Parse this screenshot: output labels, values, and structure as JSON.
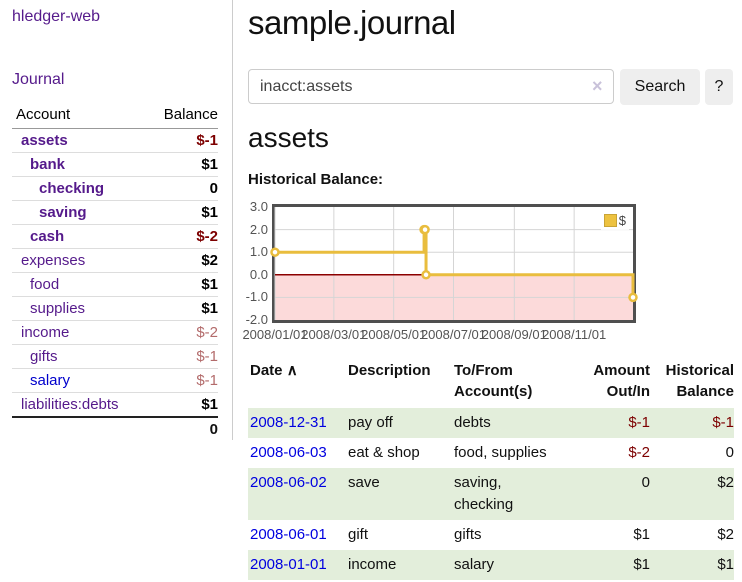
{
  "app": {
    "title": "hledger-web"
  },
  "sidebar": {
    "journal_link": "Journal",
    "accounts_table": {
      "headers": {
        "account": "Account",
        "balance": "Balance"
      },
      "rows": [
        {
          "name": "assets",
          "indent": 1,
          "bold": true,
          "balance": "$-1",
          "neg": "strong",
          "link_style": "visited"
        },
        {
          "name": "bank",
          "indent": 2,
          "bold": true,
          "balance": "$1",
          "neg": "none",
          "link_style": "visited"
        },
        {
          "name": "checking",
          "indent": 3,
          "bold": true,
          "balance": "0",
          "neg": "none",
          "link_style": "visited"
        },
        {
          "name": "saving",
          "indent": 3,
          "bold": true,
          "balance": "$1",
          "neg": "none",
          "link_style": "visited"
        },
        {
          "name": "cash",
          "indent": 2,
          "bold": true,
          "balance": "$-2",
          "neg": "strong",
          "link_style": "visited"
        },
        {
          "name": "expenses",
          "indent": 1,
          "bold": false,
          "balance": "$2",
          "neg": "none",
          "link_style": "visited"
        },
        {
          "name": "food",
          "indent": 2,
          "bold": false,
          "balance": "$1",
          "neg": "none",
          "link_style": "visited"
        },
        {
          "name": "supplies",
          "indent": 2,
          "bold": false,
          "balance": "$1",
          "neg": "none",
          "link_style": "visited"
        },
        {
          "name": "income",
          "indent": 1,
          "bold": false,
          "balance": "$-2",
          "neg": "soft",
          "link_style": "visited"
        },
        {
          "name": "gifts",
          "indent": 2,
          "bold": false,
          "balance": "$-1",
          "neg": "soft",
          "link_style": "visited"
        },
        {
          "name": "salary",
          "indent": 2,
          "bold": false,
          "balance": "$-1",
          "neg": "soft",
          "link_style": "unvisited"
        },
        {
          "name": "liabilities:debts",
          "indent": 1,
          "bold": false,
          "balance": "$1",
          "neg": "none",
          "link_style": "visited"
        }
      ],
      "total": "0"
    }
  },
  "main": {
    "page_title": "sample.journal",
    "search": {
      "value": "inacct:assets",
      "clear_icon": "×",
      "button_label": "Search",
      "help_label": "?"
    },
    "account_heading": "assets",
    "chart_label": "Historical Balance:"
  },
  "chart_data": {
    "type": "line",
    "style": "step",
    "title": "Historical Balance",
    "series": [
      {
        "name": "$",
        "points": [
          [
            "2008-01-01",
            1
          ],
          [
            "2008-06-01",
            2
          ],
          [
            "2008-06-02",
            2
          ],
          [
            "2008-06-03",
            0
          ],
          [
            "2008-12-31",
            -1
          ]
        ]
      }
    ],
    "ylim": [
      -2,
      3
    ],
    "yticks": [
      "3.0",
      "2.0",
      "1.0",
      "0.0",
      "-1.0",
      "-2.0"
    ],
    "ytick_values": [
      3,
      2,
      1,
      0,
      -1,
      -2
    ],
    "xticks": [
      "2008/01/01",
      "2008/03/01",
      "2008/05/01",
      "2008/07/01",
      "2008/09/01",
      "2008/11/01"
    ],
    "xtick_dates": [
      "2008-01-01",
      "2008-03-01",
      "2008-05-01",
      "2008-07-01",
      "2008-09-01",
      "2008-11-01"
    ],
    "xrange": [
      "2008-01-01",
      "2008-12-31"
    ],
    "legend": {
      "label": "$",
      "position": "top-right"
    },
    "grid": true,
    "colors": {
      "line": "#e9bd3e",
      "marker_fill": "#ffffff",
      "negative_region": "#fcdada",
      "zero_line": "#8b0000",
      "grid_line": "#d5d5d5",
      "plot_border": "#4f4f4f",
      "legend_swatch": "#edc240"
    }
  },
  "transactions": {
    "headers": {
      "date": "Date",
      "sort_icon": "∧",
      "description": "Description",
      "tofrom": "To/From Account(s)",
      "amount": "Amount Out/In",
      "balance": "Historical Balance"
    },
    "rows": [
      {
        "date": "2008-12-31",
        "description": "pay off",
        "tofrom": "debts",
        "amount": "$-1",
        "amount_neg": true,
        "balance": "$-1",
        "balance_neg": true
      },
      {
        "date": "2008-06-03",
        "description": "eat & shop",
        "tofrom": "food, supplies",
        "amount": "$-2",
        "amount_neg": true,
        "balance": "0",
        "balance_neg": false
      },
      {
        "date": "2008-06-02",
        "description": "save",
        "tofrom": "saving, checking",
        "amount": "0",
        "amount_neg": false,
        "balance": "$2",
        "balance_neg": false
      },
      {
        "date": "2008-06-01",
        "description": "gift",
        "tofrom": "gifts",
        "amount": "$1",
        "amount_neg": false,
        "balance": "$2",
        "balance_neg": false
      },
      {
        "date": "2008-01-01",
        "description": "income",
        "tofrom": "salary",
        "amount": "$1",
        "amount_neg": false,
        "balance": "$1",
        "balance_neg": false
      }
    ]
  }
}
